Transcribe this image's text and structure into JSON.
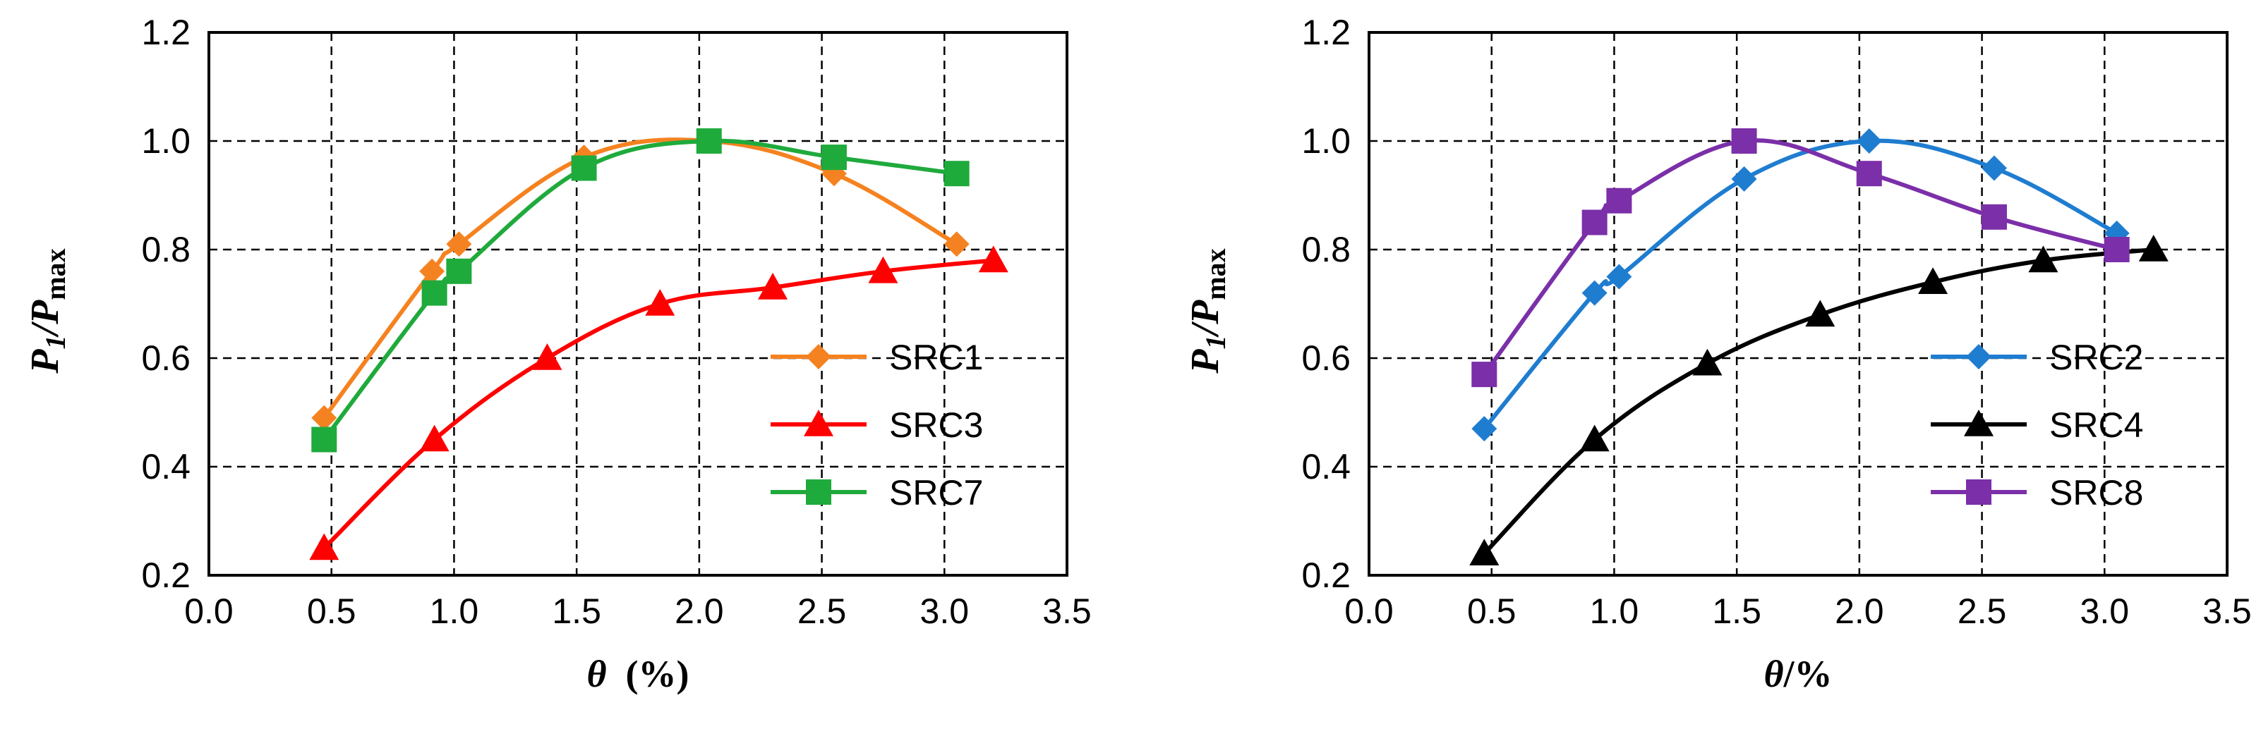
{
  "chart_data": [
    {
      "type": "line",
      "title": "",
      "xlabel": "θ  (%)",
      "xlabel_symbol": "θ",
      "xlabel_unit": "  (%)",
      "ylabel": "P1/Pmax",
      "ylabel_p1": "P",
      "ylabel_sub1": "1",
      "ylabel_slash": "/P",
      "ylabel_sub2": "max",
      "xlim": [
        0.0,
        3.5
      ],
      "ylim": [
        0.2,
        1.2
      ],
      "xticks": [
        "0.0",
        "0.5",
        "1.0",
        "1.5",
        "2.0",
        "2.5",
        "3.0",
        "3.5"
      ],
      "yticks": [
        "0.2",
        "0.4",
        "0.6",
        "0.8",
        "1.0",
        "1.2"
      ],
      "grid": true,
      "legend_position": "bottom-right",
      "series": [
        {
          "name": "SRC1",
          "color": "#F58220",
          "marker": "diamond",
          "x": [
            0.47,
            0.91,
            1.02,
            1.53,
            2.04,
            2.55,
            3.05
          ],
          "y": [
            0.49,
            0.76,
            0.81,
            0.97,
            1.0,
            0.94,
            0.81
          ]
        },
        {
          "name": "SRC3",
          "color": "#FF0000",
          "marker": "triangle",
          "x": [
            0.47,
            0.92,
            1.38,
            1.84,
            2.3,
            2.75,
            3.2
          ],
          "y": [
            0.25,
            0.45,
            0.6,
            0.7,
            0.73,
            0.76,
            0.78
          ]
        },
        {
          "name": "SRC7",
          "color": "#1FAA3C",
          "marker": "square",
          "x": [
            0.47,
            0.92,
            1.02,
            1.53,
            2.04,
            2.55,
            3.05
          ],
          "y": [
            0.45,
            0.72,
            0.76,
            0.95,
            1.0,
            0.97,
            0.94
          ]
        }
      ]
    },
    {
      "type": "line",
      "title": "",
      "xlabel": "θ/%",
      "xlabel_symbol": "θ",
      "xlabel_unit": "/%",
      "ylabel": "P1/Pmax",
      "ylabel_p1": "P",
      "ylabel_sub1": "1",
      "ylabel_slash": "/P",
      "ylabel_sub2": "max",
      "xlim": [
        0.0,
        3.5
      ],
      "ylim": [
        0.2,
        1.2
      ],
      "xticks": [
        "0.0",
        "0.5",
        "1.0",
        "1.5",
        "2.0",
        "2.5",
        "3.0",
        "3.5"
      ],
      "yticks": [
        "0.2",
        "0.4",
        "0.6",
        "0.8",
        "1.0",
        "1.2"
      ],
      "grid": true,
      "legend_position": "bottom-right",
      "series": [
        {
          "name": "SRC2",
          "color": "#1F7DD0",
          "marker": "diamond",
          "x": [
            0.47,
            0.92,
            1.02,
            1.53,
            2.04,
            2.55,
            3.05
          ],
          "y": [
            0.47,
            0.72,
            0.75,
            0.93,
            1.0,
            0.95,
            0.83
          ]
        },
        {
          "name": "SRC4",
          "color": "#000000",
          "marker": "triangle",
          "x": [
            0.47,
            0.92,
            1.38,
            1.84,
            2.3,
            2.75,
            3.2
          ],
          "y": [
            0.24,
            0.45,
            0.59,
            0.68,
            0.74,
            0.78,
            0.8
          ]
        },
        {
          "name": "SRC8",
          "color": "#7B2FA8",
          "marker": "square",
          "x": [
            0.47,
            0.92,
            1.02,
            1.53,
            2.04,
            2.55,
            3.05
          ],
          "y": [
            0.57,
            0.85,
            0.89,
            1.0,
            0.94,
            0.86,
            0.8
          ]
        }
      ]
    }
  ]
}
